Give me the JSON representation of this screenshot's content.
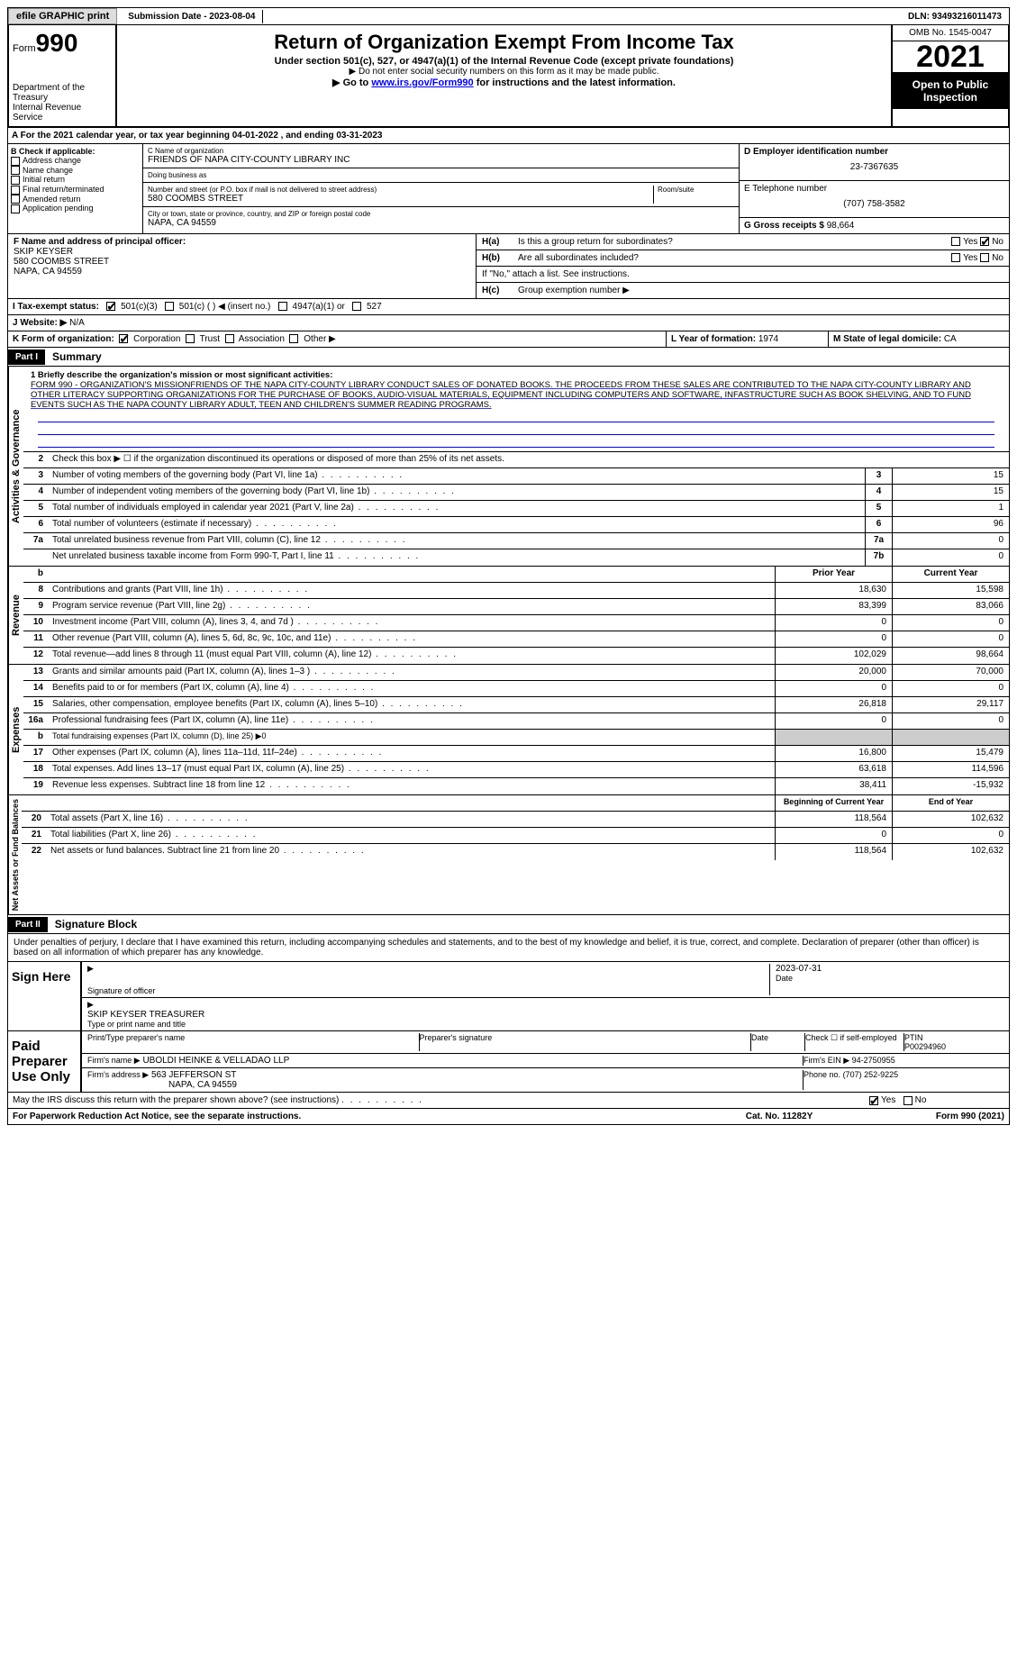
{
  "topbar": {
    "efile": "efile GRAPHIC print",
    "submission": "Submission Date - 2023-08-04",
    "dln": "DLN: 93493216011473"
  },
  "header": {
    "form_label": "Form",
    "form_num": "990",
    "dept": "Department of the Treasury",
    "irs": "Internal Revenue Service",
    "title": "Return of Organization Exempt From Income Tax",
    "sub1": "Under section 501(c), 527, or 4947(a)(1) of the Internal Revenue Code (except private foundations)",
    "sub2": "▶ Do not enter social security numbers on this form as it may be made public.",
    "sub3_pre": "▶ Go to ",
    "sub3_link": "www.irs.gov/Form990",
    "sub3_post": " for instructions and the latest information.",
    "omb": "OMB No. 1545-0047",
    "year": "2021",
    "open": "Open to Public Inspection"
  },
  "rowA": "For the 2021 calendar year, or tax year beginning 04-01-2022    , and ending 03-31-2023",
  "colB": {
    "hdr": "B Check if applicable:",
    "items": [
      "Address change",
      "Name change",
      "Initial return",
      "Final return/terminated",
      "Amended return",
      "Application pending"
    ]
  },
  "colC": {
    "name_lbl": "C Name of organization",
    "name": "FRIENDS OF NAPA CITY-COUNTY LIBRARY INC",
    "dba_lbl": "Doing business as",
    "dba": "",
    "addr_lbl": "Number and street (or P.O. box if mail is not delivered to street address)",
    "addr": "580 COOMBS STREET",
    "room_lbl": "Room/suite",
    "city_lbl": "City or town, state or province, country, and ZIP or foreign postal code",
    "city": "NAPA, CA  94559"
  },
  "colD": {
    "ein_lbl": "D Employer identification number",
    "ein": "23-7367635",
    "phone_lbl": "E Telephone number",
    "phone": "(707) 758-3582",
    "gross_lbl": "G Gross receipts $",
    "gross": "98,664"
  },
  "rowF": {
    "lbl": "F  Name and address of principal officer:",
    "name": "SKIP KEYSER",
    "addr1": "580 COOMBS STREET",
    "addr2": "NAPA, CA  94559"
  },
  "rowH": {
    "a_lbl": "H(a)",
    "a_txt": "Is this a group return for subordinates?",
    "b_lbl": "H(b)",
    "b_txt": "Are all subordinates included?",
    "note": "If \"No,\" attach a list. See instructions.",
    "c_lbl": "H(c)",
    "c_txt": "Group exemption number ▶",
    "yes": "Yes",
    "no": "No"
  },
  "rowI": {
    "lbl": "I   Tax-exempt status:",
    "opts": [
      "501(c)(3)",
      "501(c) (  ) ◀ (insert no.)",
      "4947(a)(1) or",
      "527"
    ]
  },
  "rowJ": {
    "lbl": "J   Website: ▶",
    "val": "N/A"
  },
  "rowK": {
    "lbl": "K Form of organization:",
    "opts": [
      "Corporation",
      "Trust",
      "Association",
      "Other ▶"
    ]
  },
  "rowL": {
    "lbl": "L Year of formation:",
    "val": "1974"
  },
  "rowM": {
    "lbl": "M State of legal domicile:",
    "val": "CA"
  },
  "part1": {
    "hdr": "Part I",
    "title": "Summary",
    "line1_lbl": "1  Briefly describe the organization's mission or most significant activities:",
    "mission": "FORM 990 - ORGANIZATION'S MISSIONFRIENDS OF THE NAPA CITY-COUNTY LIBRARY CONDUCT SALES OF DONATED BOOKS. THE PROCEEDS FROM THESE SALES ARE CONTRIBUTED TO THE NAPA CITY-COUNTY LIBRARY AND OTHER LITERACY SUPPORTING ORGANIZATIONS FOR THE PURCHASE OF BOOKS, AUDIO-VISUAL MATERIALS, EQUIPMENT INCLUDING COMPUTERS AND SOFTWARE, INFASTRUCTURE SUCH AS BOOK SHELVING, AND TO FUND EVENTS SUCH AS THE NAPA COUNTY LIBRARY ADULT, TEEN AND CHILDREN'S SUMMER READING PROGRAMS.",
    "line2": "Check this box ▶ ☐  if the organization discontinued its operations or disposed of more than 25% of its net assets.",
    "lines_single": [
      {
        "n": "3",
        "txt": "Number of voting members of the governing body (Part VI, line 1a)",
        "box": "3",
        "val": "15"
      },
      {
        "n": "4",
        "txt": "Number of independent voting members of the governing body (Part VI, line 1b)",
        "box": "4",
        "val": "15"
      },
      {
        "n": "5",
        "txt": "Total number of individuals employed in calendar year 2021 (Part V, line 2a)",
        "box": "5",
        "val": "1"
      },
      {
        "n": "6",
        "txt": "Total number of volunteers (estimate if necessary)",
        "box": "6",
        "val": "96"
      },
      {
        "n": "7a",
        "txt": "Total unrelated business revenue from Part VIII, column (C), line 12",
        "box": "7a",
        "val": "0"
      },
      {
        "n": "",
        "txt": "Net unrelated business taxable income from Form 990-T, Part I, line 11",
        "box": "7b",
        "val": "0"
      }
    ],
    "col_hdr_b": "b",
    "col_prior": "Prior Year",
    "col_current": "Current Year",
    "revenue": [
      {
        "n": "8",
        "txt": "Contributions and grants (Part VIII, line 1h)",
        "p": "18,630",
        "c": "15,598"
      },
      {
        "n": "9",
        "txt": "Program service revenue (Part VIII, line 2g)",
        "p": "83,399",
        "c": "83,066"
      },
      {
        "n": "10",
        "txt": "Investment income (Part VIII, column (A), lines 3, 4, and 7d )",
        "p": "0",
        "c": "0"
      },
      {
        "n": "11",
        "txt": "Other revenue (Part VIII, column (A), lines 5, 6d, 8c, 9c, 10c, and 11e)",
        "p": "0",
        "c": "0"
      },
      {
        "n": "12",
        "txt": "Total revenue—add lines 8 through 11 (must equal Part VIII, column (A), line 12)",
        "p": "102,029",
        "c": "98,664"
      }
    ],
    "expenses": [
      {
        "n": "13",
        "txt": "Grants and similar amounts paid (Part IX, column (A), lines 1–3 )",
        "p": "20,000",
        "c": "70,000"
      },
      {
        "n": "14",
        "txt": "Benefits paid to or for members (Part IX, column (A), line 4)",
        "p": "0",
        "c": "0"
      },
      {
        "n": "15",
        "txt": "Salaries, other compensation, employee benefits (Part IX, column (A), lines 5–10)",
        "p": "26,818",
        "c": "29,117"
      },
      {
        "n": "16a",
        "txt": "Professional fundraising fees (Part IX, column (A), line 11e)",
        "p": "0",
        "c": "0"
      },
      {
        "n": "b",
        "txt": "Total fundraising expenses (Part IX, column (D), line 25) ▶0",
        "p": "",
        "c": "",
        "shade": true
      },
      {
        "n": "17",
        "txt": "Other expenses (Part IX, column (A), lines 11a–11d, 11f–24e)",
        "p": "16,800",
        "c": "15,479"
      },
      {
        "n": "18",
        "txt": "Total expenses. Add lines 13–17 (must equal Part IX, column (A), line 25)",
        "p": "63,618",
        "c": "114,596"
      },
      {
        "n": "19",
        "txt": "Revenue less expenses. Subtract line 18 from line 12",
        "p": "38,411",
        "c": "-15,932"
      }
    ],
    "col_begin": "Beginning of Current Year",
    "col_end": "End of Year",
    "balances": [
      {
        "n": "20",
        "txt": "Total assets (Part X, line 16)",
        "p": "118,564",
        "c": "102,632"
      },
      {
        "n": "21",
        "txt": "Total liabilities (Part X, line 26)",
        "p": "0",
        "c": "0"
      },
      {
        "n": "22",
        "txt": "Net assets or fund balances. Subtract line 21 from line 20",
        "p": "118,564",
        "c": "102,632"
      }
    ],
    "vert_act": "Activities & Governance",
    "vert_rev": "Revenue",
    "vert_exp": "Expenses",
    "vert_bal": "Net Assets or Fund Balances"
  },
  "part2": {
    "hdr": "Part II",
    "title": "Signature Block",
    "decl": "Under penalties of perjury, I declare that I have examined this return, including accompanying schedules and statements, and to the best of my knowledge and belief, it is true, correct, and complete. Declaration of preparer (other than officer) is based on all information of which preparer has any knowledge.",
    "sign_here": "Sign Here",
    "sig_officer": "Signature of officer",
    "date": "Date",
    "date_val": "2023-07-31",
    "name_title": "SKIP KEYSER  TREASURER",
    "name_title_lbl": "Type or print name and title",
    "paid": "Paid Preparer Use Only",
    "prep_name_lbl": "Print/Type preparer's name",
    "prep_sig_lbl": "Preparer's signature",
    "date_lbl": "Date",
    "check_lbl": "Check ☐ if self-employed",
    "ptin_lbl": "PTIN",
    "ptin": "P00294960",
    "firm_name_lbl": "Firm's name    ▶",
    "firm_name": "UBOLDI HEINKE & VELLADAO LLP",
    "firm_ein_lbl": "Firm's EIN ▶",
    "firm_ein": "94-2750955",
    "firm_addr_lbl": "Firm's address ▶",
    "firm_addr": "563 JEFFERSON ST",
    "firm_city": "NAPA, CA  94559",
    "phone_lbl": "Phone no.",
    "phone": "(707) 252-9225",
    "discuss": "May the IRS discuss this return with the preparer shown above? (see instructions)",
    "yes": "Yes",
    "no": "No"
  },
  "footer": {
    "l": "For Paperwork Reduction Act Notice, see the separate instructions.",
    "c": "Cat. No. 11282Y",
    "r": "Form 990 (2021)"
  }
}
